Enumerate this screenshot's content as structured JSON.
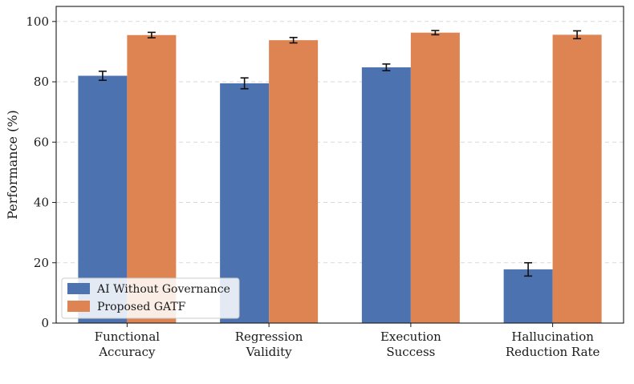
{
  "chart_data": {
    "type": "bar",
    "categories": [
      [
        "Functional",
        "Accuracy"
      ],
      [
        "Regression",
        "Validity"
      ],
      [
        "Execution",
        "Success"
      ],
      [
        "Hallucination",
        "Reduction Rate"
      ]
    ],
    "series": [
      {
        "name": "AI Without Governance",
        "color": "#4c72b0",
        "values": [
          82.0,
          79.5,
          84.8,
          17.8
        ],
        "errors": [
          1.5,
          1.8,
          1.1,
          2.2
        ]
      },
      {
        "name": "Proposed GATF",
        "color": "#dd8452",
        "values": [
          95.5,
          93.8,
          96.3,
          95.6
        ],
        "errors": [
          0.9,
          0.9,
          0.7,
          1.3
        ]
      }
    ],
    "title": "",
    "xlabel": "",
    "ylabel": "Performance (%)",
    "ylim": [
      0,
      105
    ],
    "yticks": [
      0,
      20,
      40,
      60,
      80,
      100
    ],
    "grid": "y-dashed",
    "legend_position": "lower-left"
  }
}
